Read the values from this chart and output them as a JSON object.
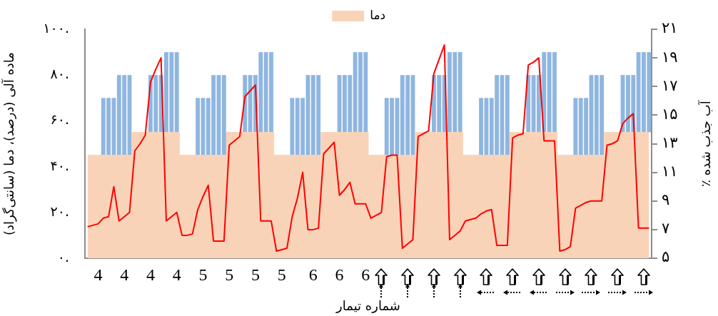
{
  "chart_data": {
    "type": "bar",
    "legend": "top",
    "grid": false,
    "marker": "none",
    "xlabel": "شماره تیمار",
    "ylabel": "ماده آلی (درصد)، دما (سانتی‌گراد)",
    "y2label": "٪ آب جذب شده",
    "categories": [
      null,
      null,
      "4",
      null,
      null,
      null,
      null,
      "4",
      null,
      null,
      null,
      null,
      "4",
      null,
      null,
      null,
      null,
      "4",
      null,
      null,
      null,
      null,
      "5",
      null,
      null,
      null,
      null,
      "5",
      null,
      null,
      null,
      null,
      "5",
      null,
      null,
      null,
      null,
      "5",
      null,
      null,
      null,
      null,
      null,
      "6",
      null,
      null,
      null,
      null,
      "6",
      null,
      null,
      null,
      null,
      "6",
      null,
      null,
      null,
      null,
      null,
      null,
      null,
      null,
      null,
      null,
      null,
      null,
      null,
      null,
      null,
      null,
      null,
      null,
      null,
      null,
      null,
      null,
      null,
      null,
      null,
      null,
      null,
      null,
      null,
      null,
      null,
      null,
      null,
      null,
      null,
      null,
      null,
      null,
      null,
      null,
      null,
      null,
      null,
      null,
      null,
      null,
      null,
      null,
      null,
      null,
      null,
      null,
      null,
      null
    ],
    "ylim": [
      0,
      100
    ],
    "yticks": [
      {
        "value": 0,
        "label": "۰."
      },
      {
        "value": 20,
        "label": "۲۰."
      },
      {
        "value": 40,
        "label": "۴۰."
      },
      {
        "value": 60,
        "label": "۶۰."
      },
      {
        "value": 80,
        "label": "۸۰."
      },
      {
        "value": 100,
        "label": "۱۰۰."
      }
    ],
    "y2lim": [
      5,
      21
    ],
    "y2ticks": [
      {
        "value": 5,
        "label": "۵"
      },
      {
        "value": 7,
        "label": "۷"
      },
      {
        "value": 9,
        "label": "۹"
      },
      {
        "value": 11,
        "label": "۱۱"
      },
      {
        "value": 13,
        "label": "۱۳"
      },
      {
        "value": 15,
        "label": "۱۵"
      },
      {
        "value": 17,
        "label": "۱۷"
      },
      {
        "value": 19,
        "label": "۱۹"
      },
      {
        "value": 21,
        "label": "۲۱"
      }
    ],
    "series": [
      {
        "type": "area",
        "name": "دما",
        "color": "#f9d3b8",
        "values": [
          45,
          45,
          45,
          45,
          45,
          45,
          45,
          45,
          45,
          55,
          55,
          55,
          55,
          55,
          55,
          55,
          55,
          55,
          45,
          45,
          45,
          45,
          45,
          45,
          45,
          45,
          45,
          55,
          55,
          55,
          55,
          55,
          55,
          55,
          55,
          55,
          45,
          45,
          45,
          45,
          45,
          45,
          45,
          45,
          45,
          55,
          55,
          55,
          55,
          55,
          55,
          55,
          55,
          55,
          45,
          45,
          45,
          45,
          45,
          45,
          45,
          45,
          45,
          55,
          55,
          55,
          55,
          55,
          55,
          55,
          55,
          55,
          45,
          45,
          45,
          45,
          45,
          45,
          45,
          45,
          45,
          55,
          55,
          55,
          55,
          55,
          55,
          55,
          55,
          55,
          45,
          45,
          45,
          45,
          45,
          45,
          45,
          45,
          45,
          55,
          55,
          55,
          55,
          55,
          55,
          55,
          55,
          55
        ]
      },
      {
        "color": "#8fb6e0",
        "base": [
          null,
          null,
          null,
          45,
          45,
          45,
          45,
          45,
          45,
          null,
          null,
          null,
          55,
          55,
          55,
          55,
          55,
          55,
          null,
          null,
          null,
          45,
          45,
          45,
          45,
          45,
          45,
          null,
          null,
          null,
          55,
          55,
          55,
          55,
          55,
          55,
          null,
          null,
          null,
          45,
          45,
          45,
          45,
          45,
          45,
          null,
          null,
          null,
          55,
          55,
          55,
          55,
          55,
          55,
          null,
          null,
          null,
          45,
          45,
          45,
          45,
          45,
          45,
          null,
          null,
          null,
          55,
          55,
          55,
          55,
          55,
          55,
          null,
          null,
          null,
          45,
          45,
          45,
          45,
          45,
          45,
          null,
          null,
          null,
          55,
          55,
          55,
          55,
          55,
          55,
          null,
          null,
          null,
          45,
          45,
          45,
          45,
          45,
          45,
          null,
          null,
          null,
          55,
          55,
          55,
          55,
          55,
          55
        ],
        "values": [
          null,
          null,
          null,
          25,
          25,
          25,
          35,
          35,
          35,
          null,
          null,
          null,
          25,
          25,
          25,
          35,
          35,
          35,
          null,
          null,
          null,
          25,
          25,
          25,
          35,
          35,
          35,
          null,
          null,
          null,
          25,
          25,
          25,
          35,
          35,
          35,
          null,
          null,
          null,
          25,
          25,
          25,
          35,
          35,
          35,
          null,
          null,
          null,
          25,
          25,
          25,
          35,
          35,
          35,
          null,
          null,
          null,
          25,
          25,
          25,
          35,
          35,
          35,
          null,
          null,
          null,
          25,
          25,
          25,
          35,
          35,
          35,
          null,
          null,
          null,
          25,
          25,
          25,
          35,
          35,
          35,
          null,
          null,
          null,
          25,
          25,
          25,
          35,
          35,
          35,
          null,
          null,
          null,
          25,
          25,
          25,
          35,
          35,
          35,
          null,
          null,
          null,
          25,
          25,
          25,
          35,
          35,
          35
        ]
      },
      {
        "type": "line",
        "axis": "y2",
        "color": "#ff0000",
        "values": [
          7.2,
          7.3,
          7.4,
          7.8,
          7.9,
          10.0,
          7.6,
          7.9,
          8.2,
          12.5,
          13.0,
          13.6,
          17.3,
          18.2,
          19.0,
          7.6,
          7.9,
          8.2,
          6.6,
          6.6,
          6.7,
          8.4,
          9.3,
          10.1,
          6.2,
          6.2,
          6.2,
          12.9,
          13.2,
          13.5,
          16.3,
          16.7,
          17.1,
          7.6,
          7.6,
          7.6,
          5.5,
          5.6,
          5.7,
          7.9,
          9.2,
          11.0,
          7.0,
          7.0,
          7.1,
          12.3,
          12.7,
          13.1,
          9.4,
          9.8,
          10.3,
          8.8,
          8.8,
          8.8,
          7.8,
          8.0,
          8.2,
          12.1,
          12.2,
          12.2,
          5.7,
          6.0,
          6.3,
          13.5,
          13.7,
          13.9,
          17.9,
          18.9,
          19.9,
          6.3,
          6.6,
          6.9,
          7.6,
          7.7,
          7.8,
          8.1,
          8.3,
          8.4,
          5.9,
          5.9,
          5.9,
          13.4,
          13.6,
          13.7,
          18.5,
          18.7,
          19.0,
          13.2,
          13.2,
          13.2,
          5.5,
          5.6,
          5.8,
          8.5,
          8.7,
          8.9,
          9.0,
          9.0,
          9.0,
          12.9,
          13.0,
          13.2,
          14.4,
          14.8,
          15.1,
          7.1,
          7.1,
          7.1
        ]
      }
    ]
  }
}
